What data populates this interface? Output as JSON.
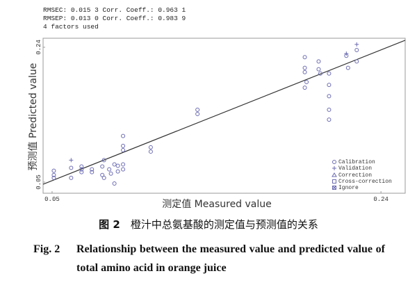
{
  "chart_data": {
    "type": "scatter",
    "stats": [
      "RMSEC: 0.015 3  Corr. Coeff.: 0.963 1",
      "RMSEP: 0.013 0  Corr. Coeff.: 0.983 9",
      "4 factors used"
    ],
    "x_label": "测定值 Measured value",
    "y_label": "预测值 Predicted value",
    "xlim": [
      0.0448,
      0.254
    ],
    "ylim": [
      0.0343,
      0.2527
    ],
    "xticks": [
      0.05,
      0.24
    ],
    "yticks": [
      0.05,
      0.24
    ],
    "series": [
      {
        "name": "Calibration",
        "color": "#6b6bb3",
        "marker": "circle",
        "x": [
          0.051,
          0.051,
          0.051,
          0.061,
          0.061,
          0.067,
          0.067,
          0.067,
          0.073,
          0.073,
          0.079,
          0.079,
          0.08,
          0.08,
          0.083,
          0.084,
          0.086,
          0.086,
          0.088,
          0.088,
          0.091,
          0.091,
          0.091,
          0.091,
          0.091,
          0.107,
          0.107,
          0.134,
          0.134,
          0.196,
          0.196,
          0.196,
          0.196,
          0.197,
          0.204,
          0.204,
          0.205,
          0.21,
          0.21,
          0.21,
          0.21,
          0.21,
          0.22,
          0.221,
          0.226,
          0.226
        ],
        "y": [
          0.066,
          0.06,
          0.056,
          0.07,
          0.056,
          0.072,
          0.068,
          0.064,
          0.068,
          0.064,
          0.072,
          0.06,
          0.056,
          0.081,
          0.068,
          0.062,
          0.075,
          0.048,
          0.073,
          0.065,
          0.115,
          0.101,
          0.095,
          0.075,
          0.068,
          0.099,
          0.093,
          0.152,
          0.146,
          0.226,
          0.211,
          0.205,
          0.183,
          0.191,
          0.22,
          0.209,
          0.203,
          0.203,
          0.187,
          0.171,
          0.152,
          0.138,
          0.228,
          0.211,
          0.236,
          0.22
        ]
      },
      {
        "name": "Validation",
        "color": "#6b6bb3",
        "marker": "plus",
        "x": [
          0.061,
          0.226,
          0.22
        ],
        "y": [
          0.081,
          0.244,
          0.231
        ]
      }
    ],
    "other_legend": [
      "Correction",
      "Cross-correction",
      "Ignore"
    ],
    "fit_line": {
      "x": [
        0.0448,
        0.254
      ],
      "y": [
        0.047,
        0.2498
      ]
    },
    "caption_cn": {
      "label": "图 2",
      "text": "橙汁中总氨基酸的测定值与预测值的关系"
    },
    "caption_en": {
      "label": "Fig. 2",
      "text": "Relationship between the measured value and predicted value of total amino acid in orange juice"
    }
  }
}
